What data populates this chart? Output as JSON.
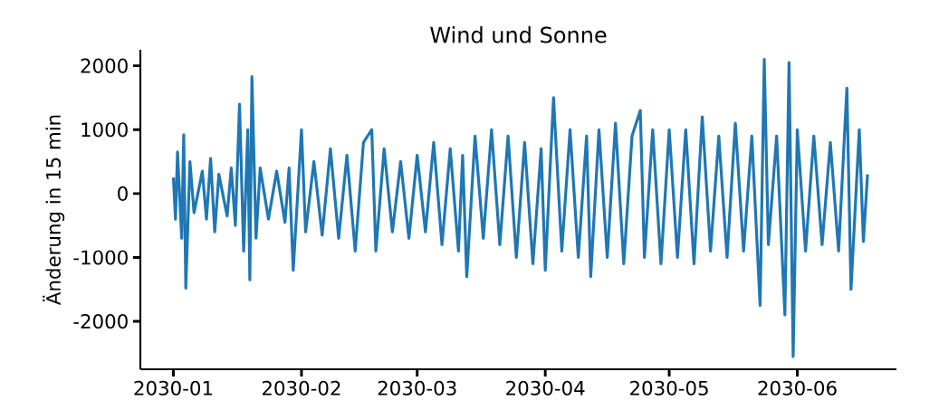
{
  "chart_data": {
    "type": "line",
    "title": "Wind und Sonne",
    "ylabel": "Änderung in 15 min",
    "x": [
      "2030-01-01",
      "2030-01-01T12:00",
      "2030-01-02",
      "2030-01-03",
      "2030-01-03T12:00",
      "2030-01-04",
      "2030-01-05",
      "2030-01-06",
      "2030-01-08",
      "2030-01-09",
      "2030-01-10",
      "2030-01-11",
      "2030-01-12",
      "2030-01-14",
      "2030-01-15",
      "2030-01-16",
      "2030-01-17",
      "2030-01-18",
      "2030-01-19",
      "2030-01-19T12:00",
      "2030-01-20",
      "2030-01-21",
      "2030-01-22",
      "2030-01-24",
      "2030-01-26",
      "2030-01-28",
      "2030-01-29",
      "2030-01-30",
      "2030-02-01",
      "2030-02-02",
      "2030-02-04",
      "2030-02-06",
      "2030-02-08",
      "2030-02-10",
      "2030-02-12",
      "2030-02-14",
      "2030-02-16",
      "2030-02-18",
      "2030-02-19",
      "2030-02-21",
      "2030-02-23",
      "2030-02-25",
      "2030-02-27",
      "2030-03-01",
      "2030-03-03",
      "2030-03-05",
      "2030-03-07",
      "2030-03-09",
      "2030-03-11",
      "2030-03-12",
      "2030-03-13",
      "2030-03-15",
      "2030-03-17",
      "2030-03-19",
      "2030-03-21",
      "2030-03-23",
      "2030-03-25",
      "2030-03-27",
      "2030-03-29",
      "2030-03-31",
      "2030-04-01",
      "2030-04-03",
      "2030-04-05",
      "2030-04-07",
      "2030-04-09",
      "2030-04-11",
      "2030-04-12",
      "2030-04-14",
      "2030-04-16",
      "2030-04-18",
      "2030-04-20",
      "2030-04-22",
      "2030-04-24",
      "2030-04-25",
      "2030-04-27",
      "2030-04-29",
      "2030-05-01",
      "2030-05-03",
      "2030-05-05",
      "2030-05-07",
      "2030-05-09",
      "2030-05-11",
      "2030-05-13",
      "2030-05-15",
      "2030-05-17",
      "2030-05-19",
      "2030-05-21",
      "2030-05-23",
      "2030-05-24",
      "2030-05-25",
      "2030-05-27",
      "2030-05-29",
      "2030-05-30",
      "2030-05-31",
      "2030-06-01",
      "2030-06-03",
      "2030-06-05",
      "2030-06-07",
      "2030-06-09",
      "2030-06-11",
      "2030-06-13",
      "2030-06-14",
      "2030-06-16",
      "2030-06-17",
      "2030-06-18"
    ],
    "series": [
      {
        "color": "#1f77b4",
        "values": [
          250,
          -400,
          650,
          -700,
          920,
          -1480,
          500,
          -300,
          350,
          -400,
          550,
          -600,
          300,
          -350,
          400,
          -500,
          1400,
          -900,
          1000,
          -1350,
          1830,
          -700,
          400,
          -400,
          350,
          -450,
          400,
          -1200,
          1000,
          -600,
          500,
          -650,
          700,
          -700,
          600,
          -900,
          800,
          1000,
          -900,
          700,
          -600,
          500,
          -700,
          600,
          -600,
          800,
          -800,
          700,
          -900,
          600,
          -1300,
          900,
          -700,
          1000,
          -800,
          900,
          -1000,
          800,
          -1100,
          700,
          -1200,
          1500,
          -900,
          1000,
          -1000,
          900,
          -1300,
          1000,
          -1000,
          1100,
          -1100,
          900,
          1300,
          -1000,
          1000,
          -1100,
          1000,
          -1000,
          1000,
          -1100,
          1200,
          -900,
          900,
          -1000,
          1100,
          -900,
          900,
          -1750,
          2100,
          -800,
          900,
          -1900,
          2050,
          -2550,
          1000,
          -900,
          900,
          -800,
          800,
          -900,
          1650,
          -1500,
          1000,
          -750,
          300
        ]
      }
    ],
    "xlim": [
      "2029-12-24",
      "2030-06-25"
    ],
    "xticks": [
      "2030-01",
      "2030-02",
      "2030-03",
      "2030-04",
      "2030-05",
      "2030-06"
    ],
    "ylim": [
      -2750,
      2250
    ],
    "yticks": [
      -2000,
      -1000,
      0,
      1000,
      2000
    ],
    "grid": false
  }
}
